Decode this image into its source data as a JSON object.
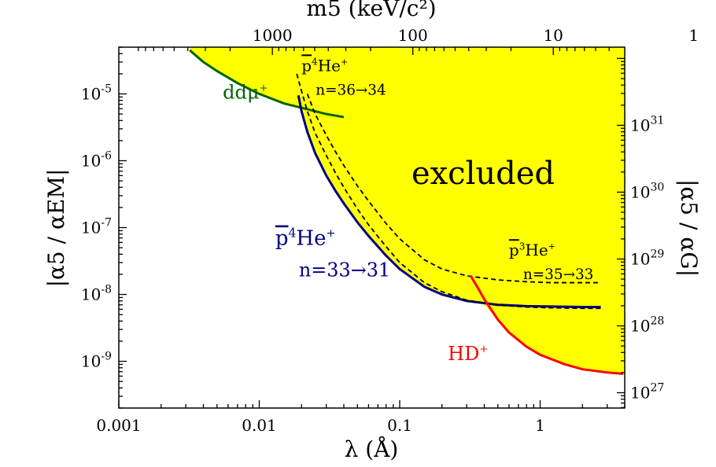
{
  "chart_data": {
    "type": "line",
    "title": "",
    "xlabel": "λ (Å)",
    "x2label": "m5 (keV/c²)",
    "ylabel": "|α5 / αEM|",
    "y2label": "|α5 / αG|",
    "xscale": "log",
    "yscale": "log",
    "xlim": [
      0.001,
      4
    ],
    "ylim": [
      2e-10,
      5e-05
    ],
    "grid": false,
    "x_ticks": [
      "0.001",
      "0.01",
      "0.1",
      "1"
    ],
    "x2_ticks": [
      "1000",
      "100",
      "10",
      "1"
    ],
    "y_ticks": [
      "10-9",
      "10-8",
      "10-7",
      "10-6",
      "10-5"
    ],
    "y2_ticks": [
      "1027",
      "1028",
      "1029",
      "1030",
      "1031"
    ],
    "region_label": "excluded",
    "colors": {
      "excluded": "#ffff00",
      "ddmu": "#006400",
      "p4he": "#000080",
      "hd": "#ff0000",
      "dashed": "#000000"
    },
    "series": [
      {
        "name": "ddμ+",
        "style": "solid",
        "x": [
          0.0032,
          0.004,
          0.005,
          0.007,
          0.01,
          0.015,
          0.02,
          0.03,
          0.04
        ],
        "y": [
          4.5e-05,
          3e-05,
          2.2e-05,
          1.45e-05,
          1e-05,
          7.2e-06,
          6.2e-06,
          5e-06,
          4.5e-06
        ]
      },
      {
        "name": "p̄4He+ n=33→31",
        "style": "solid",
        "x": [
          0.019,
          0.02,
          0.022,
          0.025,
          0.03,
          0.035,
          0.04,
          0.05,
          0.06,
          0.08,
          0.1,
          0.15,
          0.2,
          0.3,
          0.5,
          0.8,
          1.2,
          2.0,
          2.7
        ],
        "y": [
          9.5e-06,
          5.5e-06,
          2.7e-06,
          1.3e-06,
          6e-07,
          3.5e-07,
          2.3e-07,
          1.2e-07,
          7.5e-08,
          3.8e-08,
          2.4e-08,
          1.3e-08,
          1e-08,
          8e-09,
          7e-09,
          6.7e-09,
          6.6e-09,
          6.5e-09,
          6.5e-09
        ]
      },
      {
        "name": "p̄4He+ n=36→34",
        "style": "dashed",
        "x": [
          0.0185,
          0.02,
          0.022,
          0.025,
          0.03,
          0.035,
          0.04,
          0.05,
          0.06,
          0.08,
          0.1,
          0.15,
          0.2,
          0.3,
          0.5,
          0.8,
          1.2,
          2.0,
          2.7
        ],
        "y": [
          2e-05,
          1.1e-05,
          5.5e-06,
          2.6e-06,
          1.2e-06,
          6.5e-07,
          4e-07,
          1.9e-07,
          1.1e-07,
          5.2e-08,
          3e-08,
          1.5e-08,
          1.1e-08,
          8.2e-09,
          6.9e-09,
          6.5e-09,
          6.3e-09,
          6.2e-09,
          6.2e-09
        ]
      },
      {
        "name": "p̄3He+ n=35→33",
        "style": "dashed",
        "x": [
          0.022,
          0.025,
          0.03,
          0.035,
          0.04,
          0.05,
          0.06,
          0.08,
          0.1,
          0.15,
          0.2,
          0.3,
          0.5,
          0.8,
          1.2,
          2.0,
          2.7
        ],
        "y": [
          1e-05,
          5e-06,
          2.4e-06,
          1.35e-06,
          8.5e-07,
          4.2e-07,
          2.5e-07,
          1.15e-07,
          6.8e-08,
          3.3e-08,
          2.4e-08,
          1.9e-08,
          1.65e-08,
          1.55e-08,
          1.5e-08,
          1.5e-08,
          1.5e-08
        ]
      },
      {
        "name": "HD+",
        "style": "solid",
        "x": [
          0.32,
          0.36,
          0.4,
          0.5,
          0.6,
          0.8,
          1.0,
          1.5,
          2.0,
          3.0,
          3.9
        ],
        "y": [
          1.9e-08,
          1.25e-08,
          8.5e-09,
          4.2e-09,
          2.7e-09,
          1.65e-09,
          1.25e-09,
          9e-10,
          7.6e-10,
          6.8e-10,
          6.5e-10
        ]
      }
    ],
    "excluded_boundary": {
      "x": [
        0.0032,
        0.004,
        0.005,
        0.007,
        0.01,
        0.015,
        0.018,
        0.0195,
        0.02,
        0.022,
        0.025,
        0.03,
        0.035,
        0.04,
        0.05,
        0.06,
        0.08,
        0.1,
        0.15,
        0.2,
        0.3,
        0.36,
        0.38,
        0.4,
        0.5,
        0.6,
        0.8,
        1.0,
        1.5,
        2.0,
        3.0,
        3.9
      ],
      "y": [
        4.5e-05,
        3e-05,
        2.2e-05,
        1.45e-05,
        1e-05,
        7.2e-06,
        6.5e-06,
        6.3e-06,
        5.5e-06,
        2.7e-06,
        1.3e-06,
        6e-07,
        3.5e-07,
        2.3e-07,
        1.2e-07,
        7.5e-08,
        3.8e-08,
        2.4e-08,
        1.3e-08,
        1e-08,
        8e-09,
        7.6e-09,
        7.5e-09,
        7e-09,
        4.2e-09,
        2.7e-09,
        1.65e-09,
        1.25e-09,
        9e-10,
        7.6e-10,
        6.8e-10,
        6.5e-10
      ]
    },
    "annotations": [
      {
        "id": "ddmu",
        "line1": "ddμ",
        "sup": "+",
        "x": 0.0055,
        "y": 8.5e-06,
        "color": "#006400"
      },
      {
        "id": "p4he_dashed",
        "line1": "p4He",
        "sup": "+",
        "line2": "n=36→34",
        "x": 0.02,
        "y": 2.2e-05,
        "color": "#000000"
      },
      {
        "id": "p4he_solid",
        "line1": "p4He",
        "sup": "+",
        "line2": "n=33→31",
        "x": 0.013,
        "y": 5.5e-08,
        "color": "#000080"
      },
      {
        "id": "p3he",
        "line1": "p3He",
        "sup": "+",
        "line2": "n=35→33",
        "x": 0.6,
        "y": 3.8e-08,
        "color": "#000000"
      },
      {
        "id": "hd",
        "line1": "HD",
        "sup": "+",
        "x": 0.22,
        "y": 1.05e-09,
        "color": "#ff0000"
      }
    ]
  }
}
